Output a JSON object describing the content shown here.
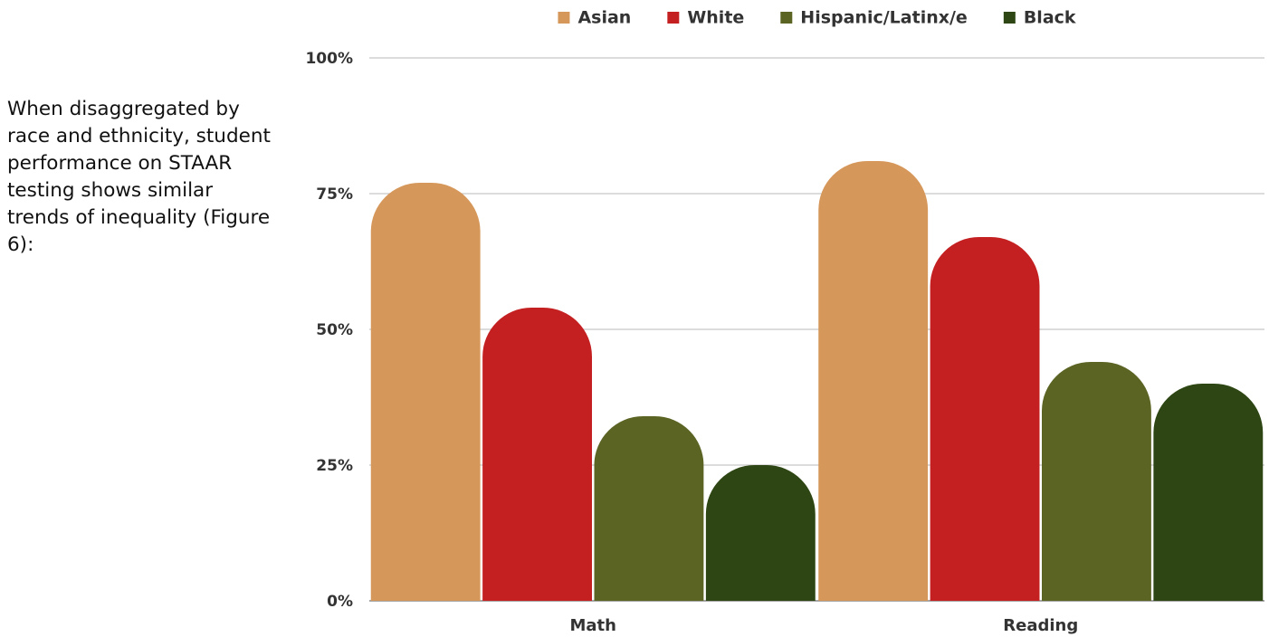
{
  "intro_text": "When disaggregated by race and ethnicity, student performance on STAAR testing shows similar trends of inequality (Figure 6):",
  "chart_data": {
    "type": "bar",
    "categories": [
      "Math",
      "Reading"
    ],
    "series": [
      {
        "name": "Asian",
        "color": "#D6975A",
        "values": [
          77,
          81
        ]
      },
      {
        "name": "White",
        "color": "#C42021",
        "values": [
          54,
          67
        ]
      },
      {
        "name": "Hispanic/Latinx/e",
        "color": "#5C6424",
        "values": [
          34,
          44
        ]
      },
      {
        "name": "Black",
        "color": "#2D4613",
        "values": [
          25,
          40
        ]
      }
    ],
    "yticks": [
      "0%",
      "25%",
      "50%",
      "75%",
      "100%"
    ],
    "ylim": [
      0,
      100
    ],
    "grid": true,
    "legend_position": "top",
    "title": "",
    "xlabel": "",
    "ylabel": ""
  }
}
